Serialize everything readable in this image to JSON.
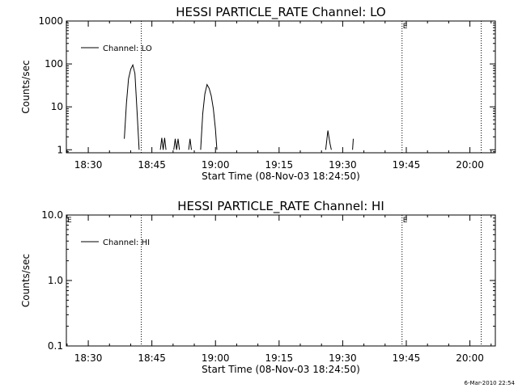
{
  "footer_stamp": "6-Mar-2010 22:54",
  "chart_data": [
    {
      "type": "line",
      "title": "HESSI PARTICLE_RATE Channel: LO",
      "xlabel": "Start Time (08-Nov-03 18:24:50)",
      "ylabel": "Counts/sec",
      "xscale": "time",
      "xlim": [
        "18:24:50",
        "20:06:00"
      ],
      "xticks": [
        "18:30",
        "18:45",
        "19:00",
        "19:15",
        "19:30",
        "19:45",
        "20:00"
      ],
      "yscale": "log",
      "ylim": [
        0.85,
        1000
      ],
      "yticks": [
        "1",
        "10",
        "100",
        "1000"
      ],
      "legend": "upper-left",
      "markers": [
        "18:42:30",
        "19:44:00",
        "20:02:40"
      ],
      "marker_labels": [
        {
          "text": "E",
          "at": "19:44:00"
        }
      ],
      "series": [
        {
          "name": "Channel: LO",
          "points": [
            [
              "18:38:30",
              1.8
            ],
            [
              "18:39:00",
              12
            ],
            [
              "18:39:30",
              45
            ],
            [
              "18:40:00",
              75
            ],
            [
              "18:40:30",
              95
            ],
            [
              "18:41:00",
              60
            ],
            [
              "18:41:30",
              8
            ],
            [
              "18:42:00",
              1
            ],
            null,
            [
              "18:47:00",
              1
            ],
            [
              "18:47:20",
              1.9
            ],
            [
              "18:47:40",
              1
            ],
            [
              "18:48:00",
              1.9
            ],
            [
              "18:48:20",
              1
            ],
            null,
            [
              "18:50:10",
              1
            ],
            [
              "18:50:30",
              1.8
            ],
            [
              "18:50:50",
              1
            ],
            [
              "18:51:10",
              1.8
            ],
            [
              "18:51:30",
              1
            ],
            null,
            [
              "18:53:40",
              1
            ],
            [
              "18:54:00",
              1.8
            ],
            [
              "18:54:20",
              1
            ],
            null,
            [
              "18:56:30",
              1
            ],
            [
              "18:57:00",
              7
            ],
            [
              "18:57:30",
              20
            ],
            [
              "18:58:00",
              33
            ],
            [
              "18:58:30",
              27
            ],
            [
              "18:59:00",
              18
            ],
            [
              "18:59:30",
              9
            ],
            [
              "19:00:00",
              3
            ],
            [
              "19:00:20",
              1
            ],
            null,
            [
              "19:26:00",
              1
            ],
            [
              "19:26:30",
              2.8
            ],
            [
              "19:27:00",
              1.4
            ],
            [
              "19:27:20",
              1
            ],
            null,
            [
              "19:32:20",
              1
            ],
            [
              "19:32:30",
              1.8
            ]
          ]
        }
      ]
    },
    {
      "type": "line",
      "title": "HESSI PARTICLE_RATE Channel: HI",
      "xlabel": "Start Time (08-Nov-03 18:24:50)",
      "ylabel": "Counts/sec",
      "xscale": "time",
      "xlim": [
        "18:24:50",
        "20:06:00"
      ],
      "xticks": [
        "18:30",
        "18:45",
        "19:00",
        "19:15",
        "19:30",
        "19:45",
        "20:00"
      ],
      "yscale": "log",
      "ylim": [
        0.1,
        10
      ],
      "yticks": [
        "0.1",
        "1.0",
        "10.0"
      ],
      "legend": "upper-left",
      "markers": [
        "18:42:30",
        "19:44:00",
        "20:02:40"
      ],
      "marker_labels": [
        {
          "text": "E",
          "at": "18:24:50"
        },
        {
          "text": "E",
          "at": "19:44:00"
        }
      ],
      "series": [
        {
          "name": "Channel: HI",
          "points": []
        }
      ]
    }
  ]
}
